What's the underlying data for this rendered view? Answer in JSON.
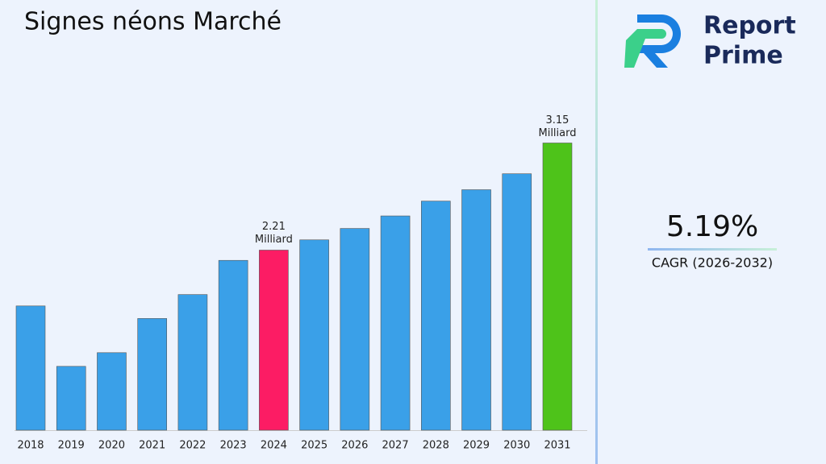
{
  "chart_data": {
    "type": "bar",
    "title": "Signes néons Marché",
    "categories": [
      "2018",
      "2019",
      "2020",
      "2021",
      "2022",
      "2023",
      "2024",
      "2025",
      "2026",
      "2027",
      "2028",
      "2029",
      "2030",
      "2031"
    ],
    "values": [
      1.72,
      1.19,
      1.31,
      1.61,
      1.82,
      2.12,
      2.21,
      2.3,
      2.4,
      2.51,
      2.64,
      2.74,
      2.88,
      3.15
    ],
    "value_labels": [
      null,
      null,
      null,
      null,
      null,
      null,
      "2.21 Milliard",
      null,
      null,
      null,
      null,
      null,
      null,
      "3.15 Milliard"
    ],
    "colors": [
      "#3aa0e8",
      "#3aa0e8",
      "#3aa0e8",
      "#3aa0e8",
      "#3aa0e8",
      "#3aa0e8",
      "#fc1c64",
      "#3aa0e8",
      "#3aa0e8",
      "#3aa0e8",
      "#3aa0e8",
      "#3aa0e8",
      "#3aa0e8",
      "#4ec31a"
    ],
    "ylim": [
      0.63,
      3.5
    ]
  },
  "brand": {
    "line1": "Report",
    "line2": "Prime"
  },
  "cagr": {
    "value": "5.19%",
    "label": "CAGR (2026-2032)"
  }
}
